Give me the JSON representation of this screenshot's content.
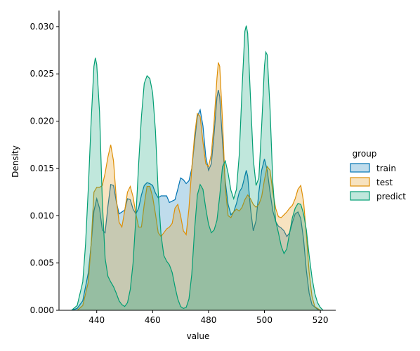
{
  "chart_data": {
    "type": "area",
    "title": "",
    "xlabel": "value",
    "ylabel": "Density",
    "xlim": [
      426.5,
      525.5
    ],
    "ylim": [
      0,
      0.0317
    ],
    "xticks": [
      440,
      460,
      480,
      500,
      520
    ],
    "yticks": [
      0.0,
      0.005,
      0.01,
      0.015,
      0.02,
      0.025,
      0.03
    ],
    "ytick_labels": [
      "0.000",
      "0.005",
      "0.010",
      "0.015",
      "0.020",
      "0.025",
      "0.030"
    ],
    "grid": false,
    "legend": {
      "title": "group",
      "placement": "right"
    },
    "series": [
      {
        "name": "train",
        "color": "#0173b2",
        "points": [
          [
            431,
            0
          ],
          [
            433,
            0.0002
          ],
          [
            435,
            0.001
          ],
          [
            437,
            0.004
          ],
          [
            438,
            0.007
          ],
          [
            439,
            0.0105
          ],
          [
            440,
            0.0118
          ],
          [
            441,
            0.0108
          ],
          [
            442,
            0.0085
          ],
          [
            443,
            0.0082
          ],
          [
            444,
            0.011
          ],
          [
            445,
            0.0133
          ],
          [
            446,
            0.0132
          ],
          [
            447,
            0.0115
          ],
          [
            448,
            0.0102
          ],
          [
            450,
            0.0106
          ],
          [
            451,
            0.0118
          ],
          [
            452,
            0.0117
          ],
          [
            453,
            0.0107
          ],
          [
            454,
            0.0102
          ],
          [
            455,
            0.0108
          ],
          [
            456,
            0.0122
          ],
          [
            457,
            0.0132
          ],
          [
            458,
            0.0135
          ],
          [
            459,
            0.0134
          ],
          [
            460,
            0.0132
          ],
          [
            461,
            0.0124
          ],
          [
            462,
            0.0119
          ],
          [
            463,
            0.0121
          ],
          [
            465,
            0.0121
          ],
          [
            466,
            0.0114
          ],
          [
            468,
            0.0117
          ],
          [
            469,
            0.0128
          ],
          [
            470,
            0.014
          ],
          [
            471,
            0.0138
          ],
          [
            472,
            0.0134
          ],
          [
            473,
            0.0137
          ],
          [
            474,
            0.015
          ],
          [
            475,
            0.0178
          ],
          [
            476,
            0.0205
          ],
          [
            477,
            0.0212
          ],
          [
            478,
            0.0195
          ],
          [
            479,
            0.0163
          ],
          [
            480,
            0.0148
          ],
          [
            481,
            0.0155
          ],
          [
            482,
            0.0187
          ],
          [
            483,
            0.0225
          ],
          [
            483.5,
            0.0233
          ],
          [
            484,
            0.0226
          ],
          [
            485,
            0.0178
          ],
          [
            486,
            0.0136
          ],
          [
            487,
            0.0112
          ],
          [
            488,
            0.0101
          ],
          [
            489,
            0.0104
          ],
          [
            490,
            0.0113
          ],
          [
            491,
            0.0125
          ],
          [
            492,
            0.013
          ],
          [
            493,
            0.0142
          ],
          [
            493.5,
            0.0148
          ],
          [
            494,
            0.0142
          ],
          [
            495,
            0.0108
          ],
          [
            496,
            0.0084
          ],
          [
            497,
            0.0095
          ],
          [
            498,
            0.0125
          ],
          [
            499,
            0.0148
          ],
          [
            500,
            0.016
          ],
          [
            501,
            0.0148
          ],
          [
            502,
            0.0125
          ],
          [
            503,
            0.0105
          ],
          [
            504,
            0.0094
          ],
          [
            505,
            0.0089
          ],
          [
            506,
            0.0087
          ],
          [
            507,
            0.0084
          ],
          [
            508,
            0.0078
          ],
          [
            509,
            0.0082
          ],
          [
            510,
            0.0093
          ],
          [
            511,
            0.0102
          ],
          [
            512,
            0.0104
          ],
          [
            513,
            0.0097
          ],
          [
            514,
            0.0075
          ],
          [
            515,
            0.0042
          ],
          [
            516,
            0.0018
          ],
          [
            517,
            0.0006
          ],
          [
            519,
            0.0001
          ],
          [
            520,
            0
          ]
        ]
      },
      {
        "name": "test",
        "color": "#de8f05",
        "points": [
          [
            433,
            0
          ],
          [
            435,
            0.0005
          ],
          [
            437,
            0.003
          ],
          [
            438,
            0.007
          ],
          [
            439,
            0.0125
          ],
          [
            440,
            0.013
          ],
          [
            441,
            0.013
          ],
          [
            442,
            0.0132
          ],
          [
            443,
            0.0145
          ],
          [
            444,
            0.0162
          ],
          [
            445,
            0.0175
          ],
          [
            446,
            0.0158
          ],
          [
            447,
            0.0118
          ],
          [
            448,
            0.0093
          ],
          [
            449,
            0.0088
          ],
          [
            450,
            0.0105
          ],
          [
            451,
            0.0125
          ],
          [
            452,
            0.0131
          ],
          [
            453,
            0.012
          ],
          [
            454,
            0.0102
          ],
          [
            455,
            0.0088
          ],
          [
            456,
            0.0088
          ],
          [
            457,
            0.0112
          ],
          [
            458,
            0.0131
          ],
          [
            459,
            0.0131
          ],
          [
            460,
            0.012
          ],
          [
            461,
            0.0102
          ],
          [
            462,
            0.0082
          ],
          [
            463,
            0.0078
          ],
          [
            464,
            0.0082
          ],
          [
            465,
            0.0086
          ],
          [
            466,
            0.0088
          ],
          [
            467,
            0.0092
          ],
          [
            468,
            0.0108
          ],
          [
            469,
            0.0112
          ],
          [
            470,
            0.01
          ],
          [
            471,
            0.0084
          ],
          [
            472,
            0.008
          ],
          [
            473,
            0.0108
          ],
          [
            474,
            0.015
          ],
          [
            475,
            0.0185
          ],
          [
            476,
            0.0208
          ],
          [
            477,
            0.0205
          ],
          [
            478,
            0.0178
          ],
          [
            479,
            0.0155
          ],
          [
            480,
            0.0152
          ],
          [
            481,
            0.0165
          ],
          [
            482,
            0.02
          ],
          [
            483,
            0.0245
          ],
          [
            483.5,
            0.0262
          ],
          [
            484,
            0.0258
          ],
          [
            485,
            0.02
          ],
          [
            486,
            0.013
          ],
          [
            487,
            0.01
          ],
          [
            488,
            0.0098
          ],
          [
            489,
            0.0104
          ],
          [
            490,
            0.0107
          ],
          [
            491,
            0.0105
          ],
          [
            492,
            0.0109
          ],
          [
            493,
            0.0117
          ],
          [
            494,
            0.0122
          ],
          [
            495,
            0.0118
          ],
          [
            496,
            0.0112
          ],
          [
            497,
            0.0109
          ],
          [
            498,
            0.0112
          ],
          [
            499,
            0.012
          ],
          [
            500,
            0.0138
          ],
          [
            501,
            0.0152
          ],
          [
            502,
            0.0148
          ],
          [
            503,
            0.0125
          ],
          [
            504,
            0.0108
          ],
          [
            505,
            0.0099
          ],
          [
            506,
            0.0098
          ],
          [
            507,
            0.0101
          ],
          [
            508,
            0.0104
          ],
          [
            509,
            0.0108
          ],
          [
            510,
            0.0111
          ],
          [
            511,
            0.0118
          ],
          [
            512,
            0.0128
          ],
          [
            513,
            0.0132
          ],
          [
            514,
            0.0115
          ],
          [
            515,
            0.008
          ],
          [
            516,
            0.004
          ],
          [
            517,
            0.0015
          ],
          [
            518,
            0.0004
          ],
          [
            520,
            0
          ]
        ]
      },
      {
        "name": "predict",
        "color": "#029e73",
        "points": [
          [
            431,
            0
          ],
          [
            433,
            0.0005
          ],
          [
            435,
            0.003
          ],
          [
            436,
            0.007
          ],
          [
            437,
            0.013
          ],
          [
            438,
            0.02
          ],
          [
            439,
            0.0258
          ],
          [
            439.5,
            0.0267
          ],
          [
            440,
            0.026
          ],
          [
            441,
            0.021
          ],
          [
            442,
            0.0115
          ],
          [
            443,
            0.0055
          ],
          [
            444,
            0.0036
          ],
          [
            445,
            0.003
          ],
          [
            446,
            0.0025
          ],
          [
            447,
            0.0018
          ],
          [
            448,
            0.001
          ],
          [
            449,
            0.0006
          ],
          [
            450,
            0.0004
          ],
          [
            451,
            0.0008
          ],
          [
            452,
            0.0022
          ],
          [
            453,
            0.005
          ],
          [
            454,
            0.0098
          ],
          [
            455,
            0.0155
          ],
          [
            456,
            0.0205
          ],
          [
            457,
            0.024
          ],
          [
            458,
            0.0248
          ],
          [
            459,
            0.0245
          ],
          [
            460,
            0.023
          ],
          [
            461,
            0.019
          ],
          [
            462,
            0.0125
          ],
          [
            463,
            0.008
          ],
          [
            464,
            0.0058
          ],
          [
            465,
            0.0052
          ],
          [
            466,
            0.0048
          ],
          [
            467,
            0.004
          ],
          [
            468,
            0.0025
          ],
          [
            469,
            0.0012
          ],
          [
            470,
            0.0004
          ],
          [
            471,
            0.0002
          ],
          [
            472,
            0.0003
          ],
          [
            473,
            0.0012
          ],
          [
            474,
            0.0038
          ],
          [
            475,
            0.0085
          ],
          [
            476,
            0.0122
          ],
          [
            477,
            0.0133
          ],
          [
            478,
            0.0128
          ],
          [
            479,
            0.0108
          ],
          [
            480,
            0.0091
          ],
          [
            481,
            0.0082
          ],
          [
            482,
            0.0085
          ],
          [
            483,
            0.0095
          ],
          [
            484,
            0.0121
          ],
          [
            485,
            0.0152
          ],
          [
            486,
            0.0158
          ],
          [
            487,
            0.0145
          ],
          [
            488,
            0.0127
          ],
          [
            489,
            0.0118
          ],
          [
            490,
            0.0128
          ],
          [
            491,
            0.0165
          ],
          [
            492,
            0.0235
          ],
          [
            493,
            0.0295
          ],
          [
            493.5,
            0.0301
          ],
          [
            494,
            0.0293
          ],
          [
            495,
            0.0225
          ],
          [
            496,
            0.016
          ],
          [
            497,
            0.0132
          ],
          [
            498,
            0.014
          ],
          [
            499,
            0.0195
          ],
          [
            500,
            0.0258
          ],
          [
            500.5,
            0.0273
          ],
          [
            501,
            0.027
          ],
          [
            502,
            0.0213
          ],
          [
            503,
            0.0135
          ],
          [
            504,
            0.0095
          ],
          [
            505,
            0.0082
          ],
          [
            506,
            0.0068
          ],
          [
            507,
            0.006
          ],
          [
            508,
            0.0065
          ],
          [
            509,
            0.0082
          ],
          [
            510,
            0.0098
          ],
          [
            511,
            0.0108
          ],
          [
            512,
            0.0113
          ],
          [
            513,
            0.0112
          ],
          [
            514,
            0.0102
          ],
          [
            515,
            0.0085
          ],
          [
            516,
            0.0058
          ],
          [
            517,
            0.0035
          ],
          [
            518,
            0.0018
          ],
          [
            519,
            0.0008
          ],
          [
            520,
            0.0003
          ],
          [
            521,
            0
          ]
        ]
      }
    ]
  }
}
